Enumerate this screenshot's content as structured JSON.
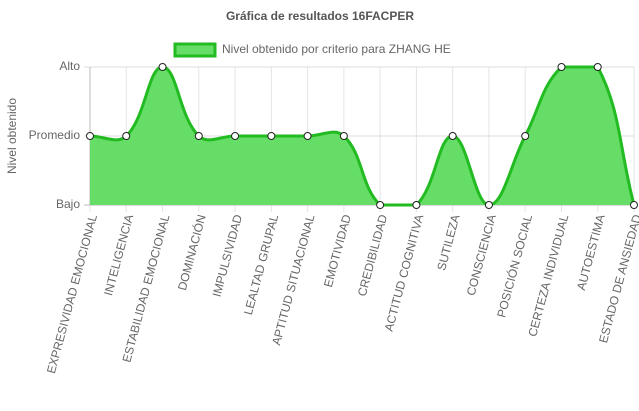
{
  "chart_data": {
    "type": "area",
    "title": "Gráfica de resultados 16FACPER",
    "y_label": "Nivel obtenido",
    "categories": [
      "EXPRESIVIDAD EMOCIONAL",
      "INTELIGENCIA",
      "ESTABILIDAD EMOCIONAL",
      "DOMINACIÓN",
      "IMPULSIVIDAD",
      "LEALTAD GRUPAL",
      "APTITUD SITUACIONAL",
      "EMOTIVIDAD",
      "CREDIBILIDAD",
      "ACTITUD COGNITIVA",
      "SUTILEZA",
      "CONSCIENCIA",
      "POSICIÓN SOCIAL",
      "CERTEZA INDIVIDUAL",
      "AUTOESTIMA",
      "ESTADO DE ANSIEDAD"
    ],
    "series": [
      {
        "name": "Nivel obtenido por criterio para ZHANG HE",
        "color": "#22bb22",
        "fill": "#66dd66",
        "values": [
          1,
          1,
          2,
          1,
          1,
          1,
          1,
          1,
          0,
          0,
          1,
          0,
          1,
          2,
          2,
          0
        ]
      }
    ],
    "ylim": [
      0,
      2
    ],
    "yticks": [
      {
        "value": 0,
        "label": "Bajo"
      },
      {
        "value": 1,
        "label": "Promedio"
      },
      {
        "value": 2,
        "label": "Alto"
      }
    ],
    "grid": true
  }
}
